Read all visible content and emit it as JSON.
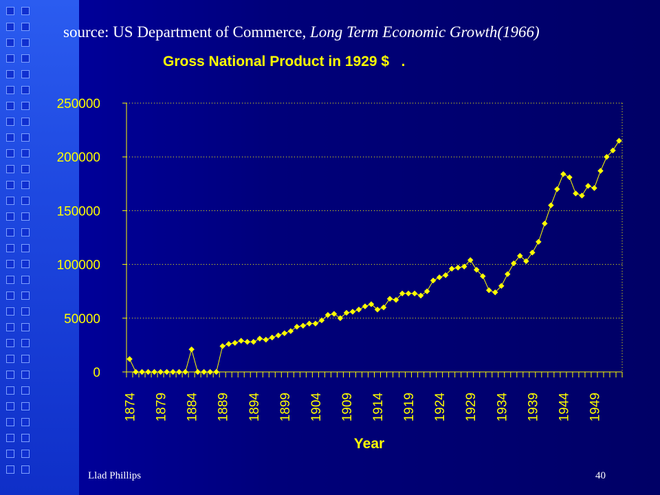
{
  "slide": {
    "source_prefix": "source: US Department of Commerce, ",
    "source_title": "Long Term Economic Growth(1966)",
    "footer_author": "Llad Phillips",
    "page_number": "40"
  },
  "colors": {
    "accent": "#ffff00",
    "background": "#000066",
    "text": "#ffffff"
  },
  "chart_data": {
    "type": "line",
    "title": "Gross National Product in 1929 $   .",
    "xlabel": "Year",
    "ylabel": "",
    "ylim": [
      0,
      250000
    ],
    "yticks": [
      0,
      50000,
      100000,
      150000,
      200000,
      250000
    ],
    "xtick_labels": [
      "1874",
      "1879",
      "1884",
      "1889",
      "1894",
      "1899",
      "1904",
      "1909",
      "1914",
      "1919",
      "1924",
      "1929",
      "1934",
      "1939",
      "1944",
      "1949"
    ],
    "grid": "horizontal-dotted",
    "marker": "diamond",
    "series": [
      {
        "x": [
          1874,
          1875,
          1876,
          1877,
          1878,
          1879,
          1880,
          1881,
          1882,
          1883,
          1884,
          1885,
          1886,
          1887,
          1888,
          1889,
          1890,
          1891,
          1892,
          1893,
          1894,
          1895,
          1896,
          1897,
          1898,
          1899,
          1900,
          1901,
          1902,
          1903,
          1904,
          1905,
          1906,
          1907,
          1908,
          1909,
          1910,
          1911,
          1912,
          1913,
          1914,
          1915,
          1916,
          1917,
          1918,
          1919,
          1920,
          1921,
          1922,
          1923,
          1924,
          1925,
          1926,
          1927,
          1928,
          1929,
          1930,
          1931,
          1932,
          1933,
          1934,
          1935,
          1936,
          1937,
          1938,
          1939,
          1940,
          1941,
          1942,
          1943,
          1944,
          1945,
          1946,
          1947,
          1948,
          1949,
          1950,
          1951,
          1952,
          1953
        ],
        "values": [
          12000,
          0,
          0,
          0,
          0,
          0,
          0,
          0,
          0,
          0,
          21000,
          0,
          0,
          0,
          0,
          24000,
          26000,
          27000,
          29000,
          28000,
          28000,
          31000,
          30000,
          32000,
          34000,
          36000,
          38000,
          42000,
          43000,
          45000,
          45000,
          48000,
          53000,
          54000,
          50000,
          55000,
          56000,
          58000,
          61000,
          63000,
          58000,
          60000,
          68000,
          67000,
          73000,
          73000,
          73000,
          71000,
          75000,
          85000,
          88000,
          90000,
          96000,
          97000,
          98000,
          104000,
          95000,
          89000,
          76000,
          74000,
          80000,
          91000,
          101000,
          108000,
          103000,
          111000,
          121000,
          138000,
          155000,
          170000,
          184000,
          181000,
          166000,
          164000,
          173000,
          171000,
          187000,
          200000,
          206000,
          215000
        ]
      }
    ]
  }
}
